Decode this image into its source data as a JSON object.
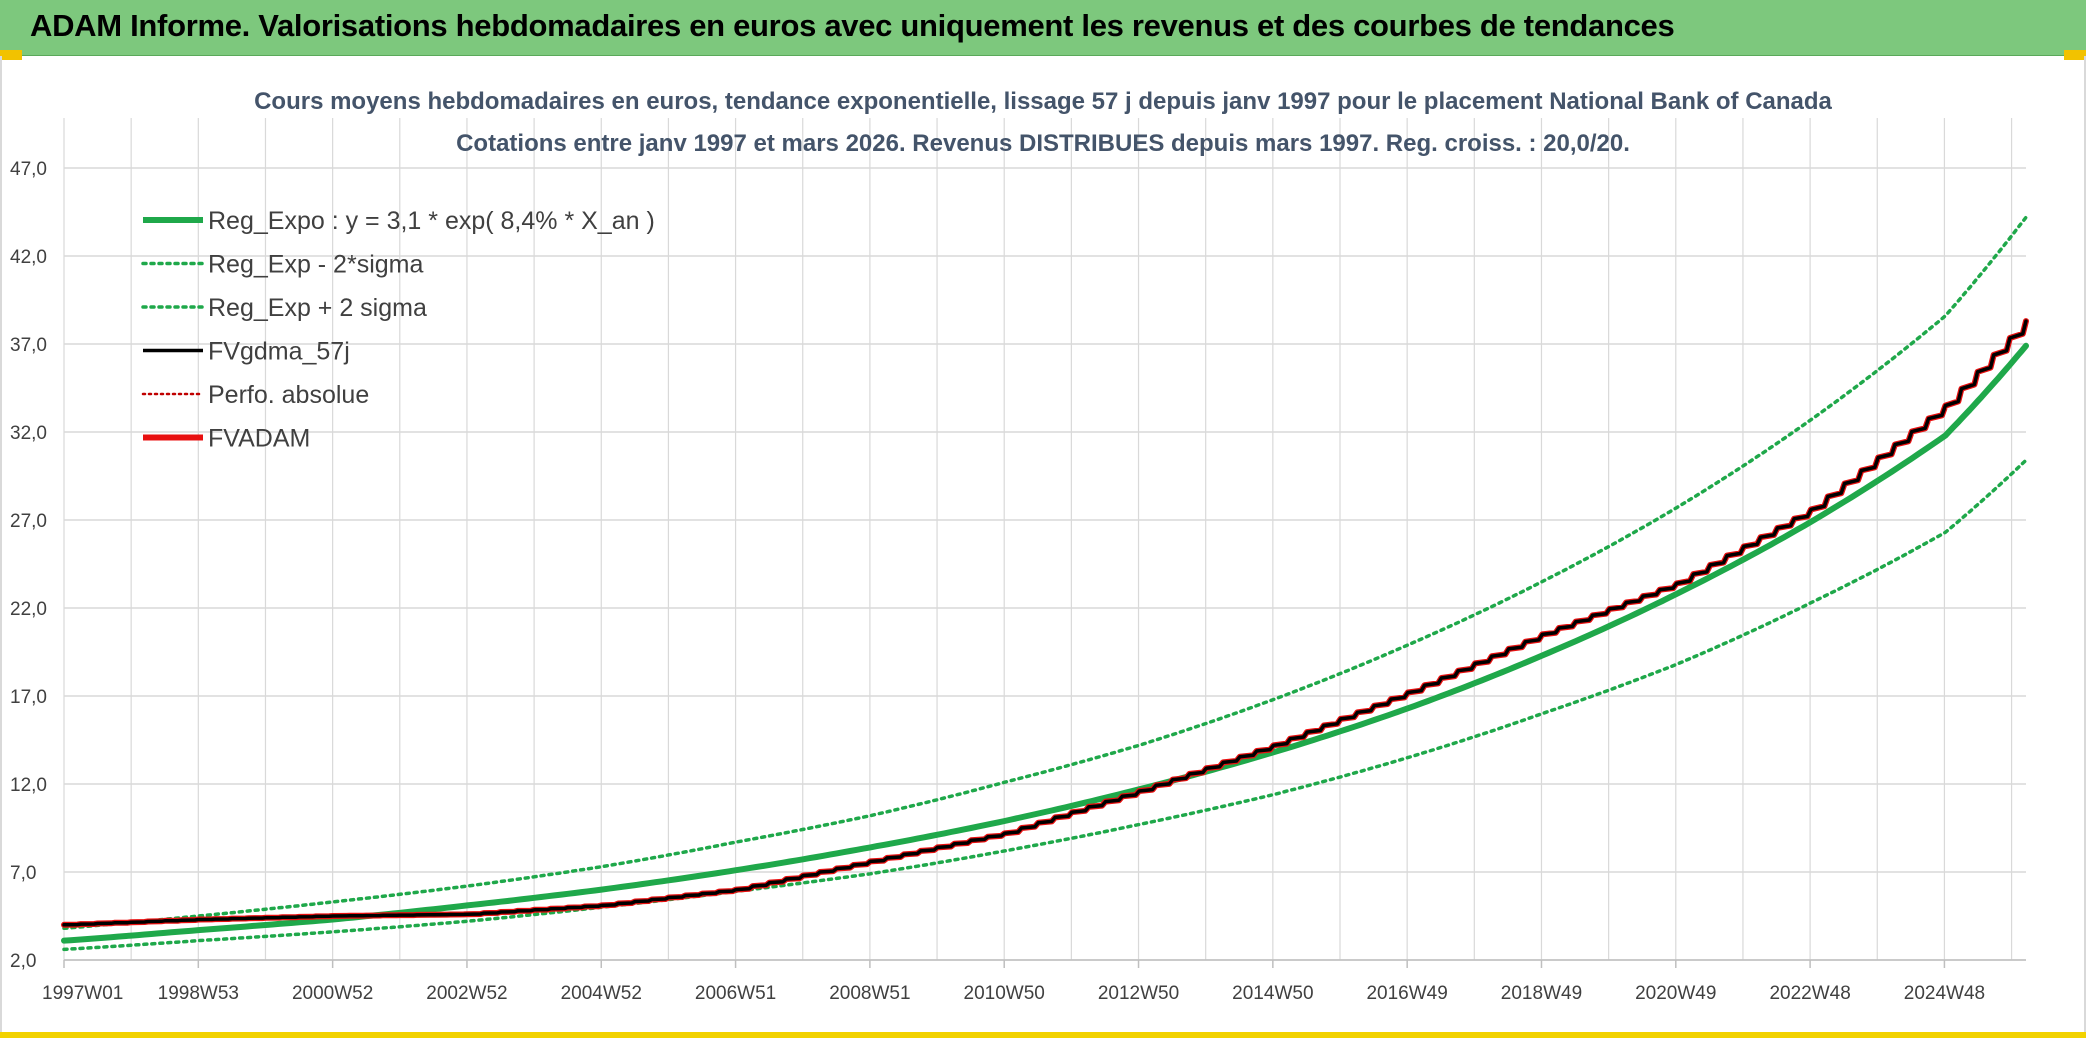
{
  "banner": {
    "title": "ADAM Informe. Valorisations hebdomadaires en euros avec uniquement les revenus et des courbes de tendances"
  },
  "colors": {
    "banner": "#7dc87d",
    "reg_expo": "#1fa84a",
    "sigma": "#1fa84a",
    "fvgdma": "#000000",
    "perfo": "#c00000",
    "fvadam": "#e81010",
    "grid": "#d9d9d9"
  },
  "chart_data": {
    "type": "line",
    "title": "Cours moyens hebdomadaires en euros, tendance exponentielle, lissage 57 j depuis janv 1997 pour le placement National Bank of Canada",
    "subtitle": "Cotations entre janv 1997 et mars 2026. Revenus DISTRIBUES depuis mars 1997. Reg. croiss. : 20,0/20.",
    "xlabel": "",
    "ylabel": "",
    "ylim": [
      2.0,
      47.0
    ],
    "yticks": [
      "47,0",
      "42,0",
      "37,0",
      "32,0",
      "27,0",
      "22,0",
      "17,0",
      "12,0",
      "7,0",
      "2,0"
    ],
    "xticks": [
      "1997W01",
      "1998W53",
      "2000W52",
      "2002W52",
      "2004W52",
      "2006W51",
      "2008W51",
      "2010W50",
      "2012W50",
      "2014W50",
      "2016W49",
      "2018W49",
      "2020W49",
      "2022W48",
      "2024W48"
    ],
    "x_range": [
      "1997W01",
      "2026W11"
    ],
    "grid": true,
    "legend_position": "top-left",
    "legend": [
      "Reg_Expo : y = 3,1 * exp( 8,4% *  X_an )",
      "Reg_Exp - 2*sigma",
      "Reg_Exp + 2 sigma",
      "FVgdma_57j",
      "Perfo. absolue",
      "FVADAM"
    ],
    "x": [
      1997.0,
      1999.0,
      2001.0,
      2003.0,
      2005.0,
      2007.0,
      2009.0,
      2011.0,
      2013.0,
      2015.0,
      2017.0,
      2019.0,
      2021.0,
      2023.0,
      2025.0,
      2026.2
    ],
    "series": [
      {
        "name": "Reg_Expo : y = 3,1 * exp( 8,4% *  X_an )",
        "style": "solid-thick",
        "values": [
          3.1,
          3.7,
          4.3,
          5.1,
          6.0,
          7.1,
          8.4,
          9.9,
          11.7,
          13.8,
          16.3,
          19.3,
          22.8,
          26.9,
          31.8,
          36.9
        ]
      },
      {
        "name": "Reg_Exp - 2*sigma",
        "style": "dotted",
        "values": [
          2.6,
          3.1,
          3.6,
          4.2,
          5.0,
          5.9,
          6.9,
          8.2,
          9.7,
          11.4,
          13.5,
          16.0,
          18.8,
          22.3,
          26.3,
          30.4
        ]
      },
      {
        "name": "Reg_Exp + 2 sigma",
        "style": "dotted",
        "values": [
          3.8,
          4.5,
          5.3,
          6.2,
          7.3,
          8.7,
          10.2,
          12.1,
          14.2,
          16.8,
          19.9,
          23.5,
          27.7,
          32.7,
          38.6,
          44.2
        ]
      },
      {
        "name": "FVgdma_57j",
        "style": "solid",
        "values": [
          4.0,
          4.3,
          4.5,
          4.6,
          5.1,
          6.0,
          7.6,
          9.2,
          11.6,
          14.2,
          17.2,
          20.5,
          23.4,
          27.6,
          33.5,
          38.3
        ]
      },
      {
        "name": "Perfo. absolue",
        "style": "dotted",
        "values": [
          4.0,
          4.3,
          4.5,
          4.6,
          5.1,
          6.0,
          7.6,
          9.2,
          11.6,
          14.2,
          17.2,
          20.5,
          23.4,
          27.6,
          33.5,
          38.3
        ]
      },
      {
        "name": "FVADAM",
        "style": "solid-thick",
        "values": [
          4.0,
          4.3,
          4.5,
          4.6,
          5.1,
          6.0,
          7.6,
          9.2,
          11.6,
          14.2,
          17.2,
          20.5,
          23.4,
          27.6,
          33.5,
          38.3
        ]
      }
    ]
  }
}
